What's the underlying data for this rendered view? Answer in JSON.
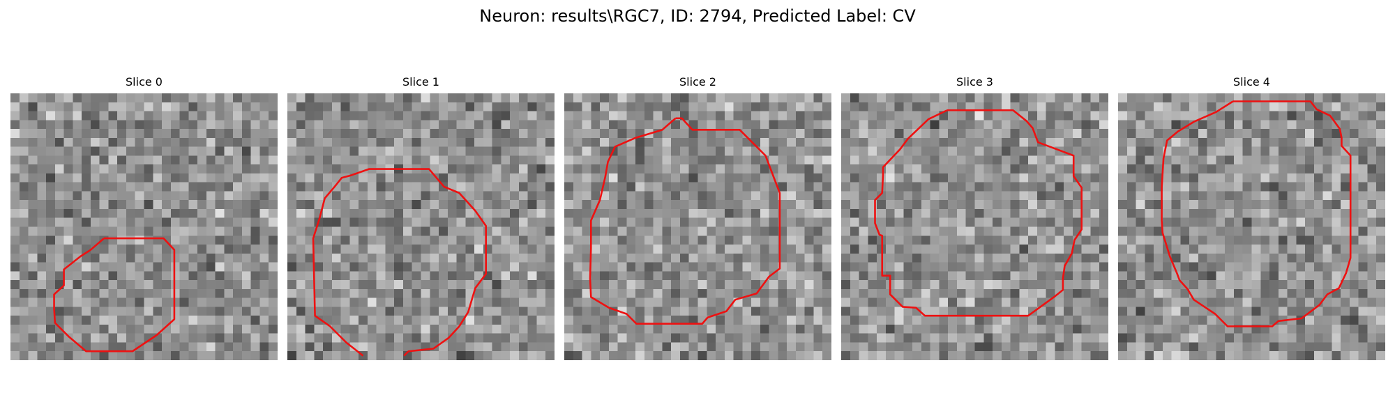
{
  "figure": {
    "title": "Neuron: results\\RGC7, ID: 2794, Predicted Label: CV"
  },
  "panels": [
    {
      "title": "Slice 0"
    },
    {
      "title": "Slice 1"
    },
    {
      "title": "Slice 2"
    },
    {
      "title": "Slice 3"
    },
    {
      "title": "Slice 4"
    }
  ],
  "colors": {
    "outline": "#ee1111",
    "colormap": "gray"
  }
}
